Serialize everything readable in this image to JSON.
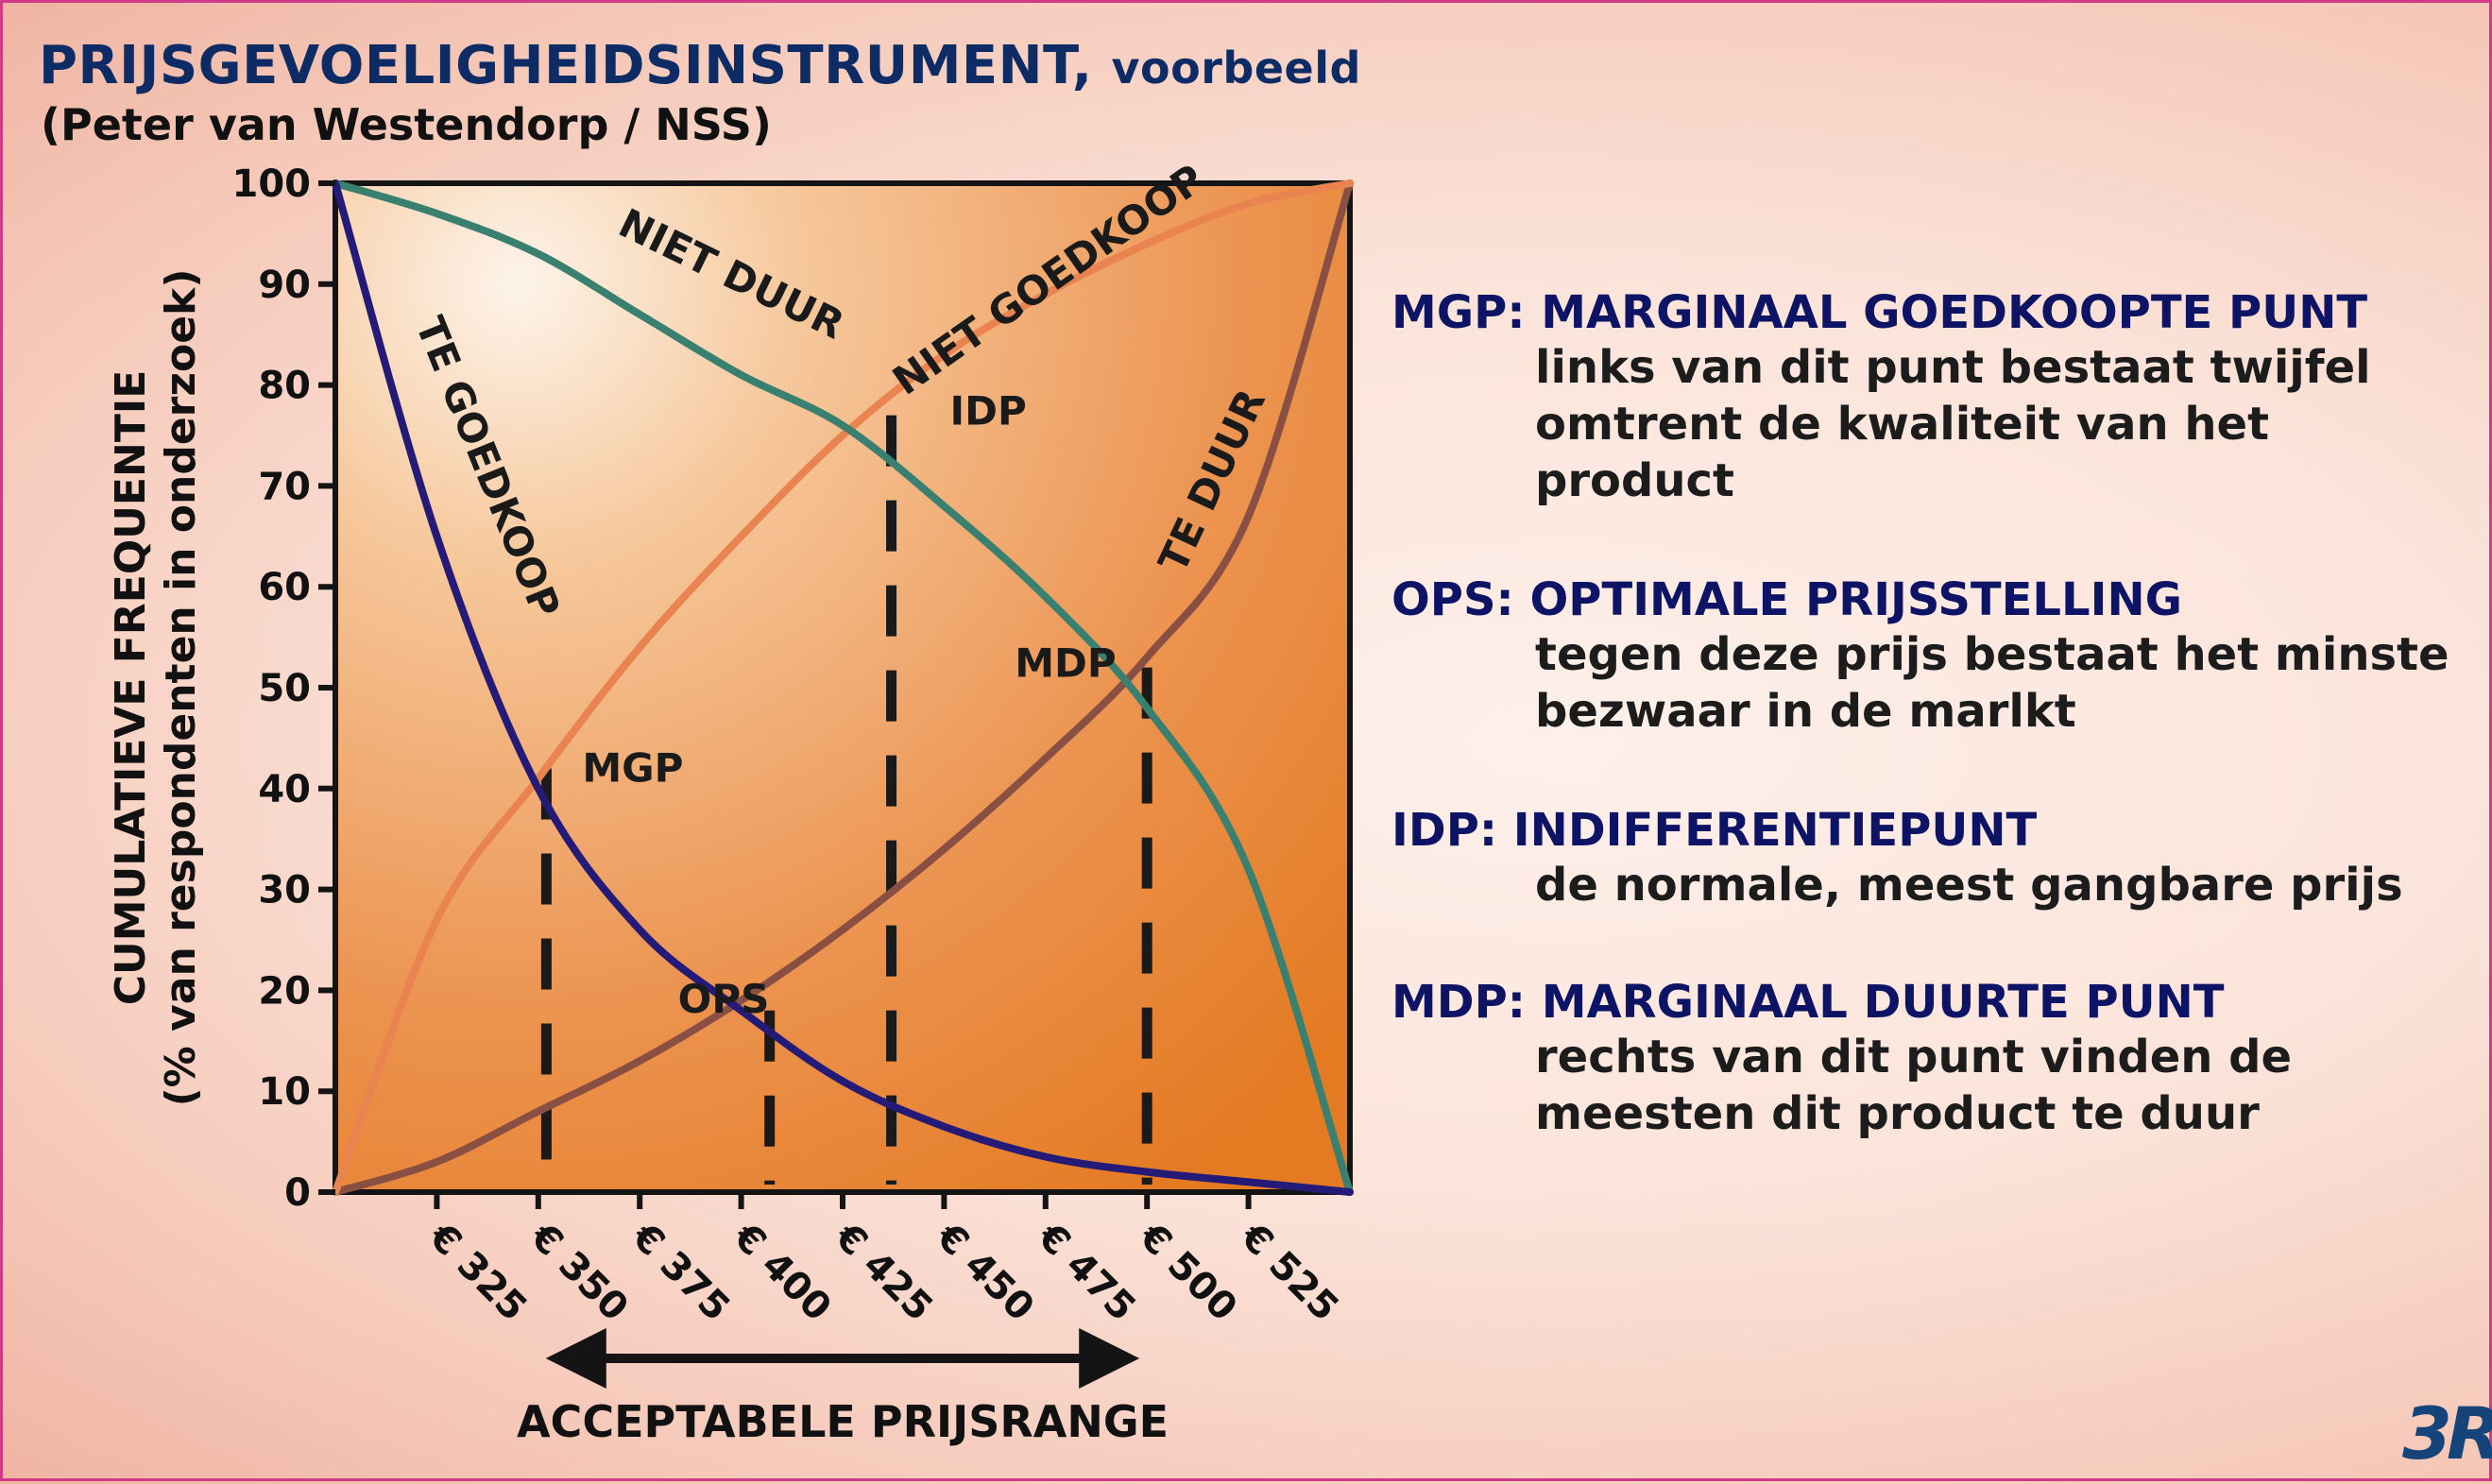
{
  "header": {
    "title": "PRIJSGEVOELIGHEIDSINSTRUMENT,",
    "title_suffix": "voorbeeld",
    "subtitle": "(Peter van Westendorp / NSS)"
  },
  "legend": [
    {
      "head": "MGP: MARGINAAL GOEDKOOPTE PUNT",
      "lines": [
        "links van dit punt bestaat twijfel",
        "omtrent de kwaliteit van het",
        "product"
      ]
    },
    {
      "head": "OPS: OPTIMALE PRIJSSTELLING",
      "lines": [
        "tegen deze prijs bestaat het minste",
        "bezwaar in de marlkt"
      ]
    },
    {
      "head": "IDP: INDIFFERENTIEPUNT",
      "lines": [
        "de normale, meest gangbare prijs"
      ]
    },
    {
      "head": "MDP: MARGINAAL DUURTE PUNT",
      "lines": [
        "rechts van dit punt vinden de",
        "meesten dit product te duur"
      ]
    }
  ],
  "logo": "3R",
  "colors": {
    "te_goedkoop": "#241a78",
    "niet_duur": "#3a8070",
    "niet_goedkoop": "#e98350",
    "te_duur": "#8a4f43",
    "plot_dark": "#e47a22",
    "plot_light": "#fbe3cc",
    "title": "#0d2c66",
    "legend_head": "#0d1466"
  },
  "chart_data": {
    "type": "line",
    "ylabel": "CUMULATIEVE FREQUENTIE",
    "ylabel2": "(% van respondenten in onderzoek)",
    "xlabel": "ACCEPTABELE PRIJSRANGE",
    "ylim": [
      0,
      100
    ],
    "xlim": [
      300,
      550
    ],
    "yticks": [
      0,
      10,
      20,
      30,
      40,
      50,
      60,
      70,
      80,
      90,
      100
    ],
    "xticks": [
      325,
      350,
      375,
      400,
      425,
      450,
      475,
      500,
      525
    ],
    "xtick_labels": [
      "€ 325",
      "€ 350",
      "€ 375",
      "€ 400",
      "€ 425",
      "€ 450",
      "€ 475",
      "€ 500",
      "€ 525"
    ],
    "series": [
      {
        "name": "TE GOEDKOOP",
        "x": [
          300,
          325,
          350,
          375,
          400,
          425,
          450,
          475,
          500,
          525,
          550
        ],
        "values": [
          100,
          65,
          40,
          26,
          18,
          11,
          6.5,
          3.5,
          2,
          1,
          0
        ]
      },
      {
        "name": "NIET DUUR",
        "x": [
          300,
          325,
          350,
          375,
          400,
          425,
          450,
          475,
          500,
          525,
          550
        ],
        "values": [
          100,
          97,
          93,
          87,
          81,
          76,
          68,
          59,
          48,
          32,
          0
        ]
      },
      {
        "name": "NIET GOEDKOOP",
        "x": [
          300,
          325,
          350,
          375,
          400,
          425,
          450,
          475,
          500,
          525,
          550
        ],
        "values": [
          0,
          27,
          41,
          54,
          65,
          75,
          83,
          89,
          94,
          98,
          100
        ]
      },
      {
        "name": "TE DUUR",
        "x": [
          300,
          325,
          350,
          375,
          400,
          425,
          450,
          475,
          500,
          525,
          550
        ],
        "values": [
          0,
          3,
          8,
          13,
          19,
          26,
          34,
          43,
          53,
          67,
          100
        ]
      }
    ],
    "points": [
      {
        "label": "MGP",
        "x": 352,
        "y": 42,
        "drop": true
      },
      {
        "label": "OPS",
        "x": 407,
        "y": 18,
        "drop": true
      },
      {
        "label": "IDP",
        "x": 437,
        "y": 77,
        "drop": true
      },
      {
        "label": "MDP",
        "x": 500,
        "y": 52,
        "drop": true
      }
    ],
    "range_arrow": {
      "from": 350,
      "to": 500
    }
  }
}
